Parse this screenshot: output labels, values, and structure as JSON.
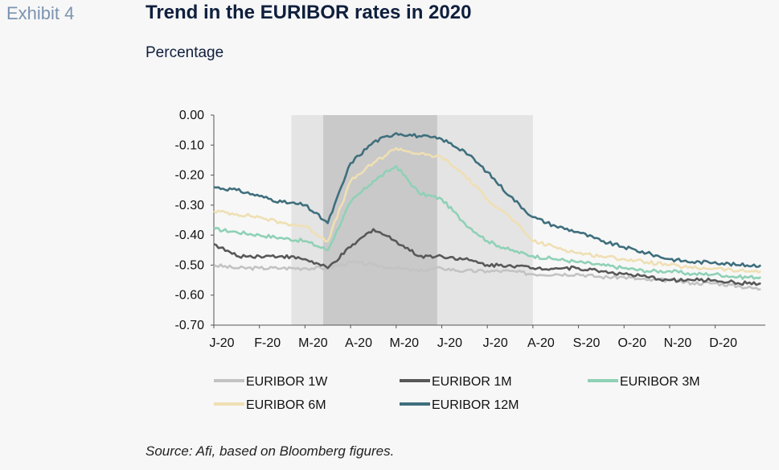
{
  "header": {
    "exhibit": "Exhibit 4",
    "title": "Trend in the EURIBOR rates in 2020",
    "subtitle": "Percentage"
  },
  "footer": {
    "source": "Source: Afi, based on Bloomberg figures."
  },
  "chart_data": {
    "type": "line",
    "title": "Trend in the EURIBOR rates in 2020",
    "subtitle": "Percentage",
    "xlabel": "",
    "ylabel": "",
    "x_tick_labels": [
      "J-20",
      "F-20",
      "M-20",
      "A-20",
      "M-20",
      "J-20",
      "J-20",
      "A-20",
      "S-20",
      "O-20",
      "N-20",
      "D-20"
    ],
    "x_tick_positions": [
      0,
      1,
      2,
      3,
      4,
      5,
      6,
      7,
      8,
      9,
      10,
      11
    ],
    "xlim": [
      0,
      12.1
    ],
    "ylim": [
      -0.7,
      0.0
    ],
    "y_ticks": [
      0.0,
      -0.1,
      -0.2,
      -0.3,
      -0.4,
      -0.5,
      -0.6,
      -0.7
    ],
    "grid": false,
    "legend_position": "bottom",
    "shaded_regions": [
      {
        "x0": 1.7,
        "x1": 7.0,
        "color": "#e4e4e4"
      },
      {
        "x0": 2.4,
        "x1": 4.9,
        "color": "#c9c9c9"
      }
    ],
    "series": [
      {
        "name": "EURIBOR 1W",
        "color": "#c3c3c3",
        "x": [
          0,
          0.5,
          1,
          1.5,
          2,
          2.5,
          3,
          3.5,
          4,
          4.5,
          5,
          5.5,
          6,
          6.5,
          7,
          7.5,
          8,
          8.5,
          9,
          9.5,
          10,
          10.5,
          11,
          11.5,
          12
        ],
        "y": [
          -0.5,
          -0.51,
          -0.51,
          -0.51,
          -0.51,
          -0.51,
          -0.49,
          -0.5,
          -0.51,
          -0.52,
          -0.51,
          -0.52,
          -0.52,
          -0.52,
          -0.53,
          -0.53,
          -0.53,
          -0.54,
          -0.54,
          -0.55,
          -0.55,
          -0.56,
          -0.56,
          -0.57,
          -0.58
        ]
      },
      {
        "name": "EURIBOR 1M",
        "color": "#585858",
        "x": [
          0,
          0.5,
          1,
          1.5,
          2,
          2.5,
          3,
          3.5,
          4,
          4.5,
          5,
          5.5,
          6,
          6.5,
          7,
          7.5,
          8,
          8.5,
          9,
          9.5,
          10,
          10.5,
          11,
          11.5,
          12
        ],
        "y": [
          -0.43,
          -0.47,
          -0.47,
          -0.47,
          -0.48,
          -0.51,
          -0.44,
          -0.38,
          -0.42,
          -0.47,
          -0.47,
          -0.48,
          -0.5,
          -0.5,
          -0.51,
          -0.51,
          -0.51,
          -0.52,
          -0.53,
          -0.54,
          -0.55,
          -0.55,
          -0.55,
          -0.56,
          -0.56
        ]
      },
      {
        "name": "EURIBOR 3M",
        "color": "#8fd1b6",
        "x": [
          0,
          0.5,
          1,
          1.5,
          2,
          2.5,
          3,
          3.5,
          4,
          4.5,
          5,
          5.5,
          6,
          6.5,
          7,
          7.5,
          8,
          8.5,
          9,
          9.5,
          10,
          10.5,
          11,
          11.5,
          12
        ],
        "y": [
          -0.38,
          -0.39,
          -0.4,
          -0.41,
          -0.42,
          -0.45,
          -0.29,
          -0.22,
          -0.17,
          -0.26,
          -0.28,
          -0.36,
          -0.42,
          -0.45,
          -0.47,
          -0.48,
          -0.49,
          -0.5,
          -0.51,
          -0.52,
          -0.52,
          -0.53,
          -0.53,
          -0.54,
          -0.54
        ]
      },
      {
        "name": "EURIBOR 6M",
        "color": "#efdfb3",
        "x": [
          0,
          0.5,
          1,
          1.5,
          2,
          2.5,
          3,
          3.5,
          4,
          4.5,
          5,
          5.5,
          6,
          6.5,
          7,
          7.5,
          8,
          8.5,
          9,
          9.5,
          10,
          10.5,
          11,
          11.5,
          12
        ],
        "y": [
          -0.32,
          -0.33,
          -0.34,
          -0.36,
          -0.37,
          -0.42,
          -0.22,
          -0.16,
          -0.11,
          -0.13,
          -0.14,
          -0.2,
          -0.28,
          -0.34,
          -0.42,
          -0.44,
          -0.46,
          -0.47,
          -0.48,
          -0.49,
          -0.5,
          -0.51,
          -0.51,
          -0.52,
          -0.52
        ]
      },
      {
        "name": "EURIBOR 12M",
        "color": "#3f6f7d",
        "x": [
          0,
          0.5,
          1,
          1.5,
          2,
          2.5,
          3,
          3.5,
          4,
          4.5,
          5,
          5.5,
          6,
          6.5,
          7,
          7.5,
          8,
          8.5,
          9,
          9.5,
          10,
          10.5,
          11,
          11.5,
          12
        ],
        "y": [
          -0.24,
          -0.25,
          -0.27,
          -0.29,
          -0.3,
          -0.36,
          -0.16,
          -0.09,
          -0.06,
          -0.07,
          -0.08,
          -0.12,
          -0.19,
          -0.27,
          -0.34,
          -0.37,
          -0.39,
          -0.42,
          -0.44,
          -0.46,
          -0.48,
          -0.49,
          -0.49,
          -0.5,
          -0.5
        ]
      }
    ]
  }
}
